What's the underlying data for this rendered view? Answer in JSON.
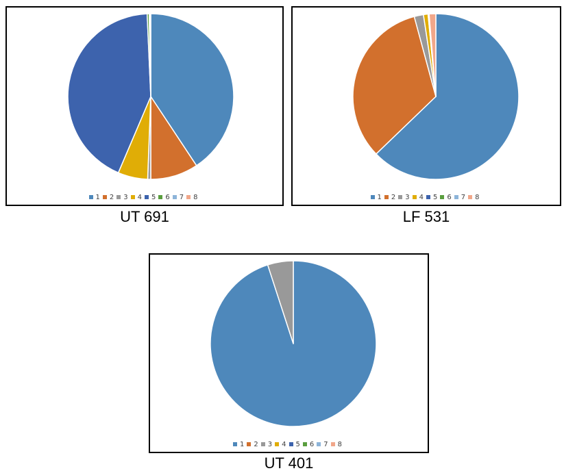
{
  "legend_labels": [
    "1",
    "2",
    "3",
    "4",
    "5",
    "6",
    "7",
    "8"
  ],
  "colors": {
    "1": "#4e88bb",
    "2": "#d2702d",
    "3": "#999999",
    "4": "#e0ad06",
    "5": "#3d63ad",
    "6": "#5a9e3e",
    "7": "#8db4d9",
    "8": "#f1a78a"
  },
  "chart_data": [
    {
      "type": "pie",
      "title": "UT 691",
      "categories": [
        "1",
        "2",
        "3",
        "4",
        "5",
        "6",
        "7",
        "8"
      ],
      "values": [
        40.7,
        9.3,
        0.6,
        5.8,
        42.9,
        0.4,
        0.2,
        0.1
      ]
    },
    {
      "type": "pie",
      "title": "LF 531",
      "categories": [
        "1",
        "2",
        "3",
        "4",
        "5",
        "6",
        "7",
        "8"
      ],
      "values": [
        62.8,
        33.0,
        1.8,
        0.9,
        0.0,
        0.0,
        0.2,
        1.3
      ]
    },
    {
      "type": "pie",
      "title": "UT 401",
      "categories": [
        "1",
        "2",
        "3",
        "4",
        "5",
        "6",
        "7",
        "8"
      ],
      "values": [
        95.0,
        0.0,
        5.0,
        0.0,
        0.0,
        0.0,
        0.0,
        0.0
      ]
    }
  ]
}
